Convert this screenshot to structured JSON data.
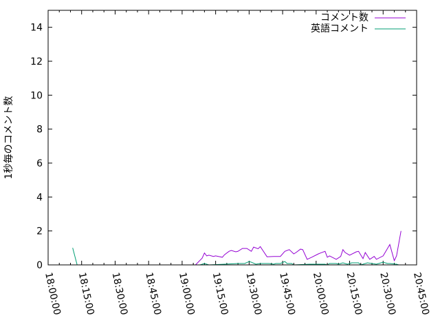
{
  "chart_data": {
    "type": "line",
    "title": "",
    "xlabel": "",
    "ylabel": "1秒毎のコメント数",
    "xlim": [
      "18:00:00",
      "20:45:00"
    ],
    "ylim": [
      0,
      15
    ],
    "x_ticks": [
      "18:00:00",
      "18:15:00",
      "18:30:00",
      "18:45:00",
      "19:00:00",
      "19:15:00",
      "19:30:00",
      "19:45:00",
      "20:00:00",
      "20:15:00",
      "20:30:00",
      "20:45:00"
    ],
    "y_ticks": [
      "0",
      "2",
      "4",
      "6",
      "8",
      "10",
      "12",
      "14"
    ],
    "grid": false,
    "legend": "top-right",
    "series": [
      {
        "name": "コメント数",
        "color": "#9400d3",
        "x": [
          "18:13",
          "19:06",
          "19:09",
          "19:10",
          "19:11",
          "19:12",
          "19:14",
          "19:15",
          "19:17",
          "19:18",
          "19:19",
          "19:21",
          "19:22",
          "19:24",
          "19:25",
          "19:27",
          "19:29",
          "19:31",
          "19:32",
          "19:34",
          "19:35",
          "19:38",
          "19:41",
          "19:42",
          "19:44",
          "19:46",
          "19:48",
          "19:50",
          "19:51",
          "19:53",
          "19:54",
          "19:56",
          "19:58",
          "20:01",
          "20:02",
          "20:04",
          "20:05",
          "20:06",
          "20:09",
          "20:11",
          "20:12",
          "20:13",
          "20:15",
          "20:18",
          "20:19",
          "20:21",
          "20:22",
          "20:24",
          "20:26",
          "20:27",
          "20:30",
          "20:33",
          "20:35",
          "20:36",
          "20:38"
        ],
        "y": [
          0,
          0,
          0.4,
          0.7,
          0.53,
          0.57,
          0.5,
          0.53,
          0.48,
          0.45,
          0.6,
          0.8,
          0.85,
          0.77,
          0.8,
          0.97,
          0.97,
          0.8,
          1.05,
          0.95,
          1.08,
          0.48,
          0.5,
          0.5,
          0.5,
          0.8,
          0.9,
          0.65,
          0.73,
          0.93,
          0.9,
          0.33,
          0.45,
          0.65,
          0.7,
          0.8,
          0.45,
          0.53,
          0.33,
          0.5,
          0.9,
          0.73,
          0.57,
          0.77,
          0.8,
          0.37,
          0.73,
          0.33,
          0.5,
          0.33,
          0.53,
          1.2,
          0.25,
          0.53,
          2.0
        ]
      },
      {
        "name": "英語コメント",
        "color": "#009e73",
        "x": [
          "18:11",
          "18:13",
          "19:08",
          "19:10",
          "19:12",
          "19:19",
          "19:25",
          "19:28",
          "19:30",
          "19:31",
          "19:33",
          "19:35",
          "19:39",
          "19:41",
          "19:42",
          "19:44",
          "19:46",
          "19:47",
          "19:49",
          "19:50",
          "19:57",
          "20:04",
          "20:05",
          "20:06",
          "20:09",
          "20:10",
          "20:12",
          "20:14",
          "20:16",
          "20:19",
          "20:20",
          "20:23",
          "20:25",
          "20:27",
          "20:30",
          "20:32",
          "20:33",
          "20:36",
          "20:37"
        ],
        "y": [
          1.0,
          0,
          0,
          0.08,
          0,
          0.04,
          0.08,
          0.08,
          0.2,
          0.16,
          0.04,
          0.08,
          0.08,
          0.04,
          0.08,
          0.08,
          0.2,
          0.08,
          0.08,
          0,
          0.04,
          0.04,
          0,
          0.08,
          0.08,
          0.04,
          0.12,
          0.04,
          0.12,
          0.12,
          0,
          0.12,
          0.08,
          0.04,
          0.16,
          0.08,
          0.08,
          0.04,
          0
        ]
      }
    ]
  }
}
